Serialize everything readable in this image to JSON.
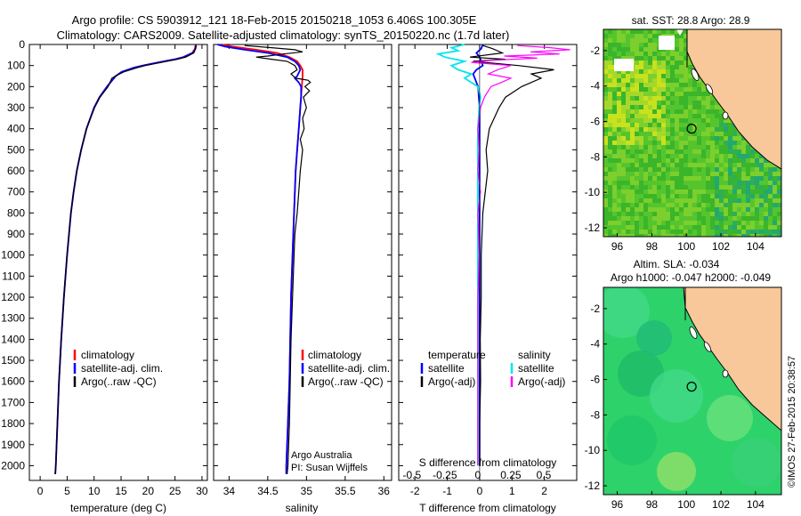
{
  "header": {
    "line1": "Argo profile: CS 5903912_121 18-Feb-2015 20150218_1053 6.406S 100.305E",
    "line2": "Climatology: CARS2009. Satellite-adjusted climatology: synTS_20150220.nc (1.7d later)"
  },
  "colors": {
    "climatology": "#ff0000",
    "satellite": "#0000ff",
    "argo": "#000000",
    "sat_salinity": "#00e5ee",
    "argo_adj_salinity": "#ff00ff",
    "land": "#f8c89a",
    "sst_bg": "#44c02c",
    "sla_bg": "#2ed26a"
  },
  "chart_data": [
    {
      "type": "line",
      "panel": "temperature",
      "xlabel": "temperature (deg C)",
      "xlim": [
        -2,
        31
      ],
      "xticks": [
        0,
        5,
        10,
        15,
        20,
        25,
        30
      ],
      "ylim": [
        2070,
        0
      ],
      "yticks": [
        0,
        100,
        200,
        300,
        400,
        500,
        600,
        700,
        800,
        900,
        1000,
        1100,
        1200,
        1300,
        1400,
        1500,
        1600,
        1700,
        1800,
        1900,
        2000
      ],
      "legend": [
        "climatology",
        "satellite-adj. clim.",
        "Argo(..raw -QC)"
      ],
      "series": [
        {
          "name": "climatology",
          "depth": [
            0,
            20,
            40,
            60,
            70,
            80,
            90,
            100,
            110,
            130,
            150,
            175,
            200,
            250,
            300,
            400,
            500,
            600,
            700,
            800,
            1000,
            1200,
            1400,
            1600,
            1800,
            2000,
            2040
          ],
          "values": [
            28.8,
            28.7,
            28.2,
            26.5,
            25.0,
            23.0,
            21.0,
            19.0,
            17.5,
            15.2,
            14.0,
            13.2,
            12.4,
            11.0,
            10.0,
            8.6,
            7.6,
            6.8,
            6.2,
            5.7,
            5.0,
            4.4,
            3.9,
            3.5,
            3.2,
            2.9,
            2.8
          ]
        },
        {
          "name": "satellite-adj. clim.",
          "depth": [
            0,
            20,
            40,
            60,
            70,
            80,
            90,
            100,
            110,
            130,
            150,
            175,
            200,
            250,
            300,
            400,
            500,
            600,
            700,
            800,
            1000,
            1200,
            1400,
            1600,
            1800,
            2000,
            2040
          ],
          "values": [
            28.9,
            28.8,
            28.3,
            26.6,
            25.0,
            23.0,
            21.0,
            19.0,
            17.4,
            15.1,
            14.0,
            13.2,
            12.4,
            11.0,
            10.0,
            8.6,
            7.6,
            6.8,
            6.2,
            5.7,
            5.0,
            4.4,
            3.9,
            3.5,
            3.2,
            2.9,
            2.8
          ]
        },
        {
          "name": "Argo(..raw -QC)",
          "depth": [
            5,
            20,
            40,
            60,
            70,
            80,
            90,
            100,
            110,
            130,
            145,
            160,
            200,
            250,
            300,
            400,
            500,
            600,
            700,
            800,
            1000,
            1200,
            1400,
            1600,
            1800,
            2000,
            2040
          ],
          "values": [
            28.9,
            28.8,
            28.5,
            27.0,
            25.5,
            23.5,
            21.5,
            19.5,
            18.0,
            15.5,
            14.3,
            13.3,
            12.6,
            11.1,
            10.1,
            8.6,
            7.6,
            6.8,
            6.2,
            5.7,
            5.0,
            4.4,
            3.9,
            3.5,
            3.2,
            2.9,
            2.8
          ]
        }
      ]
    },
    {
      "type": "line",
      "panel": "salinity",
      "xlabel": "salinity",
      "xlim": [
        33.8,
        36.1
      ],
      "xticks": [
        34,
        34.5,
        35,
        35.5,
        36
      ],
      "ylim": [
        2070,
        0
      ],
      "legend": [
        "climatology",
        "satellite-adj. clim.",
        "Argo(..raw -QC)"
      ],
      "annotation": [
        "Argo Australia",
        "PI: Susan Wijffels"
      ],
      "series": [
        {
          "name": "climatology",
          "depth": [
            0,
            10,
            25,
            40,
            60,
            80,
            100,
            120,
            150,
            200,
            250,
            300,
            400,
            500,
            600,
            800,
            1000,
            1200,
            1400,
            1600,
            1800,
            2000,
            2040
          ],
          "values": [
            33.9,
            34.05,
            34.35,
            34.62,
            34.78,
            34.88,
            34.92,
            34.95,
            34.95,
            34.94,
            34.93,
            34.92,
            34.9,
            34.88,
            34.86,
            34.84,
            34.82,
            34.8,
            34.79,
            34.78,
            34.76,
            34.74,
            34.74
          ]
        },
        {
          "name": "satellite-adj. clim.",
          "depth": [
            0,
            10,
            25,
            40,
            60,
            80,
            100,
            120,
            150,
            160,
            180,
            200,
            250,
            300,
            400,
            500,
            600,
            800,
            1000,
            1200,
            1400,
            1600,
            1800,
            2000,
            2040
          ],
          "values": [
            33.85,
            33.95,
            34.2,
            34.5,
            34.75,
            34.85,
            34.9,
            34.92,
            34.88,
            34.85,
            34.9,
            34.93,
            34.93,
            34.92,
            34.9,
            34.88,
            34.86,
            34.84,
            34.82,
            34.8,
            34.79,
            34.78,
            34.76,
            34.74,
            34.74
          ]
        },
        {
          "name": "Argo(..raw -QC)",
          "depth": [
            5,
            15,
            25,
            35,
            45,
            55,
            60,
            70,
            80,
            100,
            120,
            140,
            160,
            170,
            180,
            200,
            220,
            250,
            300,
            350,
            400,
            450,
            500,
            600,
            700,
            800,
            900,
            1000,
            1200,
            1400,
            1600,
            1800,
            2000,
            2040
          ],
          "values": [
            34.2,
            34.55,
            34.85,
            34.95,
            34.7,
            34.5,
            34.35,
            34.55,
            34.75,
            34.85,
            34.88,
            34.8,
            34.86,
            35.02,
            35.05,
            34.98,
            35.04,
            34.96,
            35.0,
            34.95,
            34.97,
            34.92,
            34.95,
            34.92,
            34.9,
            34.88,
            34.85,
            34.84,
            34.82,
            34.8,
            34.79,
            34.78,
            34.76,
            34.75
          ]
        }
      ]
    },
    {
      "type": "line",
      "panel": "difference",
      "xlabel": "T difference from climatology",
      "xlabel_top": "S difference from climatology",
      "xlim": [
        -2.5,
        3
      ],
      "xticks": [
        -2,
        -1,
        0,
        1,
        2
      ],
      "xticks_top": [
        -0.5,
        -0.25,
        0,
        0.25,
        0.5
      ],
      "ylim": [
        2070,
        0
      ],
      "legend": {
        "temperature": [
          "satellite",
          "Argo(-adj)"
        ],
        "salinity": [
          "satellite",
          "Argo(-adj)"
        ],
        "headings": [
          "temperature",
          "salinity"
        ]
      },
      "series": [
        {
          "name": "temperature satellite",
          "depth": [
            0,
            20,
            40,
            60,
            80,
            100,
            120,
            140,
            160,
            200,
            300,
            500,
            1000,
            1500,
            2000
          ],
          "values": [
            0.1,
            0.05,
            -0.1,
            0.0,
            0.05,
            0.1,
            -0.1,
            -0.2,
            -0.15,
            -0.05,
            0.0,
            0.0,
            0.0,
            0.0,
            0.0
          ]
        },
        {
          "name": "temperature Argo(-adj)",
          "depth": [
            5,
            20,
            40,
            60,
            70,
            80,
            100,
            120,
            140,
            160,
            200,
            250,
            300,
            400,
            500,
            600,
            800,
            1000,
            1200,
            1400,
            1600,
            1800,
            2000
          ],
          "values": [
            0.1,
            0.4,
            0.7,
            -0.3,
            0.8,
            -0.2,
            1.2,
            2.3,
            1.6,
            1.9,
            1.3,
            0.8,
            0.6,
            0.3,
            0.2,
            0.25,
            0.1,
            0.05,
            0.05,
            0.02,
            0.03,
            0.0,
            0.0
          ]
        },
        {
          "name": "salinity satellite",
          "depth": [
            0,
            15,
            30,
            45,
            60,
            80,
            100,
            120,
            140,
            160,
            180,
            200,
            250,
            300,
            400,
            500,
            700,
            1000,
            1500,
            2000
          ],
          "values": [
            -0.1,
            -0.2,
            -0.15,
            -0.3,
            -0.25,
            -0.1,
            -0.2,
            -0.15,
            -0.05,
            -0.1,
            -0.05,
            0.0,
            0.02,
            0.01,
            0.0,
            0.0,
            0.0,
            0.0,
            0.0,
            0.0
          ]
        },
        {
          "name": "salinity Argo(-adj)",
          "depth": [
            5,
            15,
            25,
            35,
            45,
            55,
            65,
            75,
            85,
            100,
            120,
            140,
            160,
            180,
            200,
            250,
            300,
            400,
            500,
            600,
            700,
            800,
            1000,
            1200,
            1400,
            1600,
            1800,
            2000
          ],
          "values": [
            0.3,
            0.55,
            0.7,
            0.4,
            0.62,
            0.2,
            0.45,
            0.1,
            -0.05,
            0.25,
            0.15,
            0.08,
            0.25,
            0.18,
            0.1,
            0.05,
            0.02,
            0.0,
            0.01,
            0.0,
            0.02,
            0.0,
            0.01,
            0.0,
            0.0,
            0.0,
            0.0,
            0.0
          ]
        }
      ]
    }
  ],
  "maps": {
    "sst": {
      "title": "sat. SST: 28.8  Argo: 28.9",
      "xticks": [
        96,
        98,
        100,
        102,
        104
      ],
      "yticks": [
        -2,
        -4,
        -6,
        -8,
        -10,
        -12
      ],
      "xlim": [
        95.2,
        105.5
      ],
      "ylim": [
        -12.5,
        -0.8
      ],
      "argo_lon": 100.305,
      "argo_lat": -6.406
    },
    "sla": {
      "title": "Altim. SLA: -0.034",
      "subtitle": "Argo h1000: -0.047  h2000: -0.049",
      "xticks": [
        96,
        98,
        100,
        102,
        104
      ],
      "yticks": [
        -2,
        -4,
        -6,
        -8,
        -10,
        -12
      ],
      "xlim": [
        95.2,
        105.5
      ],
      "ylim": [
        -12.5,
        -0.8
      ],
      "argo_lon": 100.305,
      "argo_lat": -6.406
    }
  },
  "footer": {
    "credit": "©IMOS 27-Feb-2015 20:38:57"
  }
}
